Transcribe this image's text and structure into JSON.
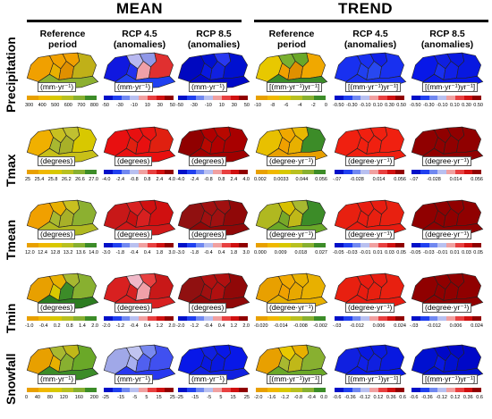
{
  "sections": {
    "mean": "MEAN",
    "trend": "TREND"
  },
  "columns": [
    {
      "line1": "Reference",
      "line2": "period"
    },
    {
      "line1": "RCP 4.5",
      "line2": "(anomalies)"
    },
    {
      "line1": "RCP 8.5",
      "line2": "(anomalies)"
    },
    {
      "line1": "Reference",
      "line2": "period"
    },
    {
      "line1": "RCP 4.5",
      "line2": "(anomalies)"
    },
    {
      "line1": "RCP 8.5",
      "line2": "(anomalies)"
    }
  ],
  "rows": [
    {
      "label": "Precipitation",
      "units": [
        "(mm·yr⁻¹)",
        "(mm·yr⁻¹)",
        "(mm·yr⁻¹)",
        "[(mm·yr⁻¹)yr⁻¹]",
        "[(mm·yr⁻¹)yr⁻¹]",
        "[(mm·yr⁻¹)yr⁻¹]"
      ],
      "ticks": [
        [
          "300",
          "400",
          "500",
          "600",
          "700",
          "800"
        ],
        [
          "-50",
          "-30",
          "-10",
          "10",
          "30",
          "50"
        ],
        [
          "-50",
          "-30",
          "-10",
          "10",
          "30",
          "50"
        ],
        [
          "-10",
          "-8",
          "-6",
          "-4",
          "-2",
          "0"
        ],
        [
          "-0.50",
          "-0.30",
          "-0.10",
          "0.10",
          "0.30",
          "0.50"
        ],
        [
          "-0.50",
          "-0.30",
          "-0.10",
          "0.10",
          "0.30",
          "0.50"
        ]
      ]
    },
    {
      "label": "Tmax",
      "units": [
        "(degrees)",
        "(degrees)",
        "(degrees)",
        "(degree·yr⁻¹)",
        "(degree·yr⁻¹)",
        "(degree·yr⁻¹)"
      ],
      "ticks": [
        [
          "25",
          "25.4",
          "25.8",
          "26.2",
          "26.6",
          "27.0"
        ],
        [
          "-4.0",
          "-2.4",
          "-0.8",
          "0.8",
          "2.4",
          "4.0"
        ],
        [
          "-4.0",
          "-2.4",
          "-0.8",
          "0.8",
          "2.4",
          "4.0"
        ],
        [
          "0.002",
          "0.0033",
          "0.044",
          "0.056"
        ],
        [
          "-.07",
          "-0.028",
          "0.014",
          "0.056"
        ],
        [
          "-.07",
          "-0.028",
          "0.014",
          "0.056"
        ]
      ]
    },
    {
      "label": "Tmean",
      "units": [
        "(degrees)",
        "(degrees)",
        "(degrees)",
        "(degree·yr⁻¹)",
        "(degree·yr⁻¹)",
        "(degree·yr⁻¹)"
      ],
      "ticks": [
        [
          "12.0",
          "12.4",
          "12.8",
          "13.2",
          "13.6",
          "14.0"
        ],
        [
          "-3.0",
          "-1.8",
          "-0.4",
          "0.4",
          "1.8",
          "3.0"
        ],
        [
          "-3.0",
          "-1.8",
          "-0.4",
          "0.4",
          "1.8",
          "3.0"
        ],
        [
          "0.000",
          "0.009",
          "0.018",
          "0.027"
        ],
        [
          "-0.05",
          "-0.03",
          "-0.01",
          "0.01",
          "0.03",
          "0.05"
        ],
        [
          "-0.05",
          "-0.03",
          "-0.01",
          "0.01",
          "0.03",
          "0.05"
        ]
      ]
    },
    {
      "label": "Tmin",
      "units": [
        "(degrees)",
        "(degrees)",
        "(degrees)",
        "(degree·yr⁻¹)",
        "(degree·yr⁻¹)",
        "(degree·yr⁻¹)"
      ],
      "ticks": [
        [
          "-1.0",
          "-0.4",
          "0.2",
          "0.8",
          "1.4",
          "2.0"
        ],
        [
          "-2.0",
          "-1.2",
          "-0.4",
          "0.4",
          "1.2",
          "2.0"
        ],
        [
          "-2.0",
          "-1.2",
          "-0.4",
          "0.4",
          "1.2",
          "2.0"
        ],
        [
          "-0.020",
          "-0.014",
          "-0.008",
          "-0.002"
        ],
        [
          "-.03",
          "-0.012",
          "0.006",
          "0.024"
        ],
        [
          "-.03",
          "-0.012",
          "0.006",
          "0.024"
        ]
      ]
    },
    {
      "label": "Snowfall",
      "units": [
        "(mm·yr⁻¹)",
        "(mm·yr⁻¹)",
        "(mm·yr⁻¹)",
        "[(mm·yr⁻¹)yr⁻¹]",
        "[(mm·yr⁻¹)yr⁻¹]",
        "[(mm·yr⁻¹)yr⁻¹]"
      ],
      "ticks": [
        [
          "0",
          "40",
          "80",
          "120",
          "160",
          "200"
        ],
        [
          "-25",
          "-15",
          "-5",
          "5",
          "15",
          "25"
        ],
        [
          "-25",
          "-15",
          "-5",
          "5",
          "15",
          "25"
        ],
        [
          "-2.0",
          "-1.6",
          "-1.2",
          "-0.8",
          "-0.4",
          "0.0"
        ],
        [
          "-0.6",
          "-0.36",
          "-0.12",
          "0.12",
          "0.36",
          "0.6"
        ],
        [
          "-0.6",
          "-0.36",
          "-0.12",
          "0.12",
          "0.36",
          "0.6"
        ]
      ]
    }
  ],
  "palettes": {
    "ref": [
      "#e8a000",
      "#f0b800",
      "#d8c800",
      "#b8c020",
      "#88b030",
      "#3c8c28"
    ],
    "div": [
      "#0010c8",
      "#2040f0",
      "#7088f0",
      "#b8c0f0",
      "#f0a0a0",
      "#e84040",
      "#d01010",
      "#900000"
    ],
    "warm": [
      "#ff3c14",
      "#f01c10",
      "#d80c08",
      "#b00000",
      "#800000"
    ]
  },
  "maps": [
    [
      "#f0a000",
      "#f0a000",
      "#e8b000",
      "#f0a000",
      "#e09000",
      "#c0b018",
      "#8cb030",
      "#1018e0",
      "#b8b8f0",
      "#2030f0",
      "#9098e8",
      "#f0a0a8",
      "#e03030",
      "#2040f0",
      "#0008c0",
      "#0010d0",
      "#0818e0",
      "#2838f0",
      "#1020e0",
      "#0010d0",
      "#0008c8",
      "#e8c800",
      "#7ab030",
      "#f0a000",
      "#6aa828",
      "#e09000",
      "#f0a800",
      "#3c8c28",
      "#1830f0",
      "#1830f0",
      "#2040f0",
      "#1020e8",
      "#2848f0",
      "#1830f0",
      "#1830f0",
      "#0818e8",
      "#1020e0",
      "#1830f0",
      "#0818e0",
      "#1020e8",
      "#0818e0",
      "#0818e8"
    ],
    [
      "#f0b000",
      "#c8c020",
      "#a8b830",
      "#c0c030",
      "#a8b028",
      "#d8c800",
      "#c8c018",
      "#e81010",
      "#e81010",
      "#e02010",
      "#e81410",
      "#e81010",
      "#e02010",
      "#e81010",
      "#900000",
      "#b00000",
      "#b80800",
      "#b80800",
      "#b00000",
      "#a80000",
      "#a00000",
      "#e8c000",
      "#f0a800",
      "#f0a000",
      "#e8b800",
      "#e8b000",
      "#3c8c28",
      "#e8a000",
      "#f02010",
      "#f02010",
      "#f02010",
      "#f02010",
      "#f02010",
      "#f02010",
      "#f02010",
      "#900000",
      "#900000",
      "#900000",
      "#900000",
      "#900000",
      "#900000",
      "#900000"
    ],
    [
      "#f0a000",
      "#e8b000",
      "#a8b830",
      "#c8c020",
      "#a8b028",
      "#8cb030",
      "#b0b820",
      "#c81818",
      "#d82020",
      "#c81010",
      "#d01010",
      "#d82020",
      "#d01010",
      "#d01818",
      "#901010",
      "#a01010",
      "#a01010",
      "#a01010",
      "#a01010",
      "#900808",
      "#900808",
      "#b0b820",
      "#d8c000",
      "#78a828",
      "#a8b830",
      "#c0b818",
      "#3c8c28",
      "#6aa828",
      "#e82010",
      "#e81c10",
      "#e81c10",
      "#e81c10",
      "#e82010",
      "#e82010",
      "#e81c10",
      "#900000",
      "#900000",
      "#900000",
      "#900000",
      "#900000",
      "#900000",
      "#900000"
    ],
    [
      "#e8a000",
      "#e8b000",
      "#d8c800",
      "#a8b830",
      "#3c8c28",
      "#88b030",
      "#2c7c20",
      "#d82020",
      "#f0b8c8",
      "#d82020",
      "#e84040",
      "#f0a0a8",
      "#c81818",
      "#d82020",
      "#901010",
      "#b01010",
      "#a01010",
      "#b01010",
      "#b01010",
      "#900808",
      "#900808",
      "#e8a000",
      "#f0a800",
      "#f0a000",
      "#e8b000",
      "#e8a800",
      "#e8b000",
      "#e8b000",
      "#e82010",
      "#e81c10",
      "#e81c10",
      "#e81c10",
      "#e82010",
      "#e82010",
      "#e81c10",
      "#900000",
      "#900000",
      "#900000",
      "#900000",
      "#900000",
      "#900000",
      "#900000"
    ],
    [
      "#e8a000",
      "#a8b830",
      "#e8b000",
      "#c0b818",
      "#88b030",
      "#6aa828",
      "#3c8c28",
      "#a0a8e8",
      "#c0c4f0",
      "#a8b0f0",
      "#7888f0",
      "#5060f0",
      "#4050f0",
      "#2838f0",
      "#0818e8",
      "#1020e0",
      "#0818e0",
      "#0818e8",
      "#0818e0",
      "#0818e8",
      "#1020e0",
      "#e8a000",
      "#e8c800",
      "#a8b830",
      "#e8b000",
      "#c0b818",
      "#88b030",
      "#6aa828",
      "#1020e0",
      "#0818e0",
      "#1020e8",
      "#0818e0",
      "#1020e0",
      "#0818e0",
      "#0818e8",
      "#0010d0",
      "#0008c8",
      "#0818e0",
      "#0008c8",
      "#0010d0",
      "#0008c8",
      "#0010d0"
    ]
  ]
}
